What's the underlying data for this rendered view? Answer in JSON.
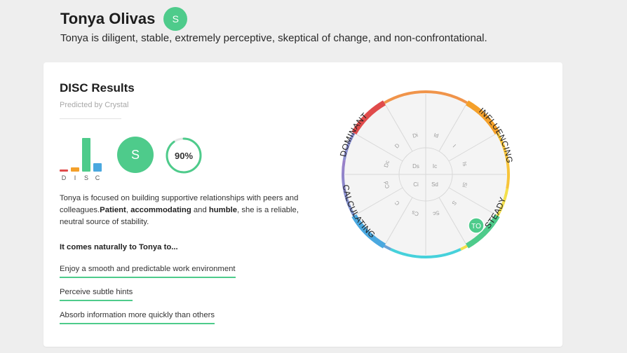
{
  "header": {
    "name": "Tonya Olivas",
    "avatar_letter": "S",
    "tagline": "Tonya is diligent, stable, extremely perceptive, skeptical of change, and non-confrontational."
  },
  "card": {
    "title": "DISC Results",
    "subtitle": "Predicted by Crystal",
    "disc_bars": [
      {
        "letter": "D",
        "value": 0.07,
        "color": "#e04b4b"
      },
      {
        "letter": "I",
        "value": 0.12,
        "color": "#f4a02a"
      },
      {
        "letter": "S",
        "value": 1.0,
        "color": "#4ecb8b"
      },
      {
        "letter": "C",
        "value": 0.24,
        "color": "#4aa8df"
      }
    ],
    "primary_type": "S",
    "accuracy_label": "90%",
    "accuracy_value": 0.9,
    "description": {
      "part1": "Tonya is focused on building supportive relationships with peers and colleagues.",
      "bold1": "Patient",
      "sep1": ", ",
      "bold2": "accommodating",
      "sep2": " and ",
      "bold3": "humble",
      "part2": ", she is a reliable, neutral source of stability."
    },
    "naturally_heading": "It comes naturally to Tonya to...",
    "naturally_items": [
      "Enjoy a smooth and predictable work environment",
      "Perceive subtle hints",
      "Absorb information more quickly than others"
    ]
  },
  "wheel": {
    "labels": {
      "dominant": "DOMINANT",
      "influencing": "INFLUENCING",
      "steady": "STEADY",
      "calculating": "CALCULATING"
    },
    "marker": "TO",
    "segment_labels": [
      "Di",
      "Id",
      "I",
      "Is",
      "Si",
      "S",
      "Sc",
      "Cs",
      "C",
      "Cd",
      "Dc",
      "D"
    ],
    "inner_labels": [
      "Ds",
      "Ic",
      "Ci",
      "Sd"
    ],
    "colors": {
      "dominant": "#e04b4b",
      "influencing": "#f4a02a",
      "steady": "#4ecb8b",
      "calculating": "#4aa8df"
    }
  }
}
